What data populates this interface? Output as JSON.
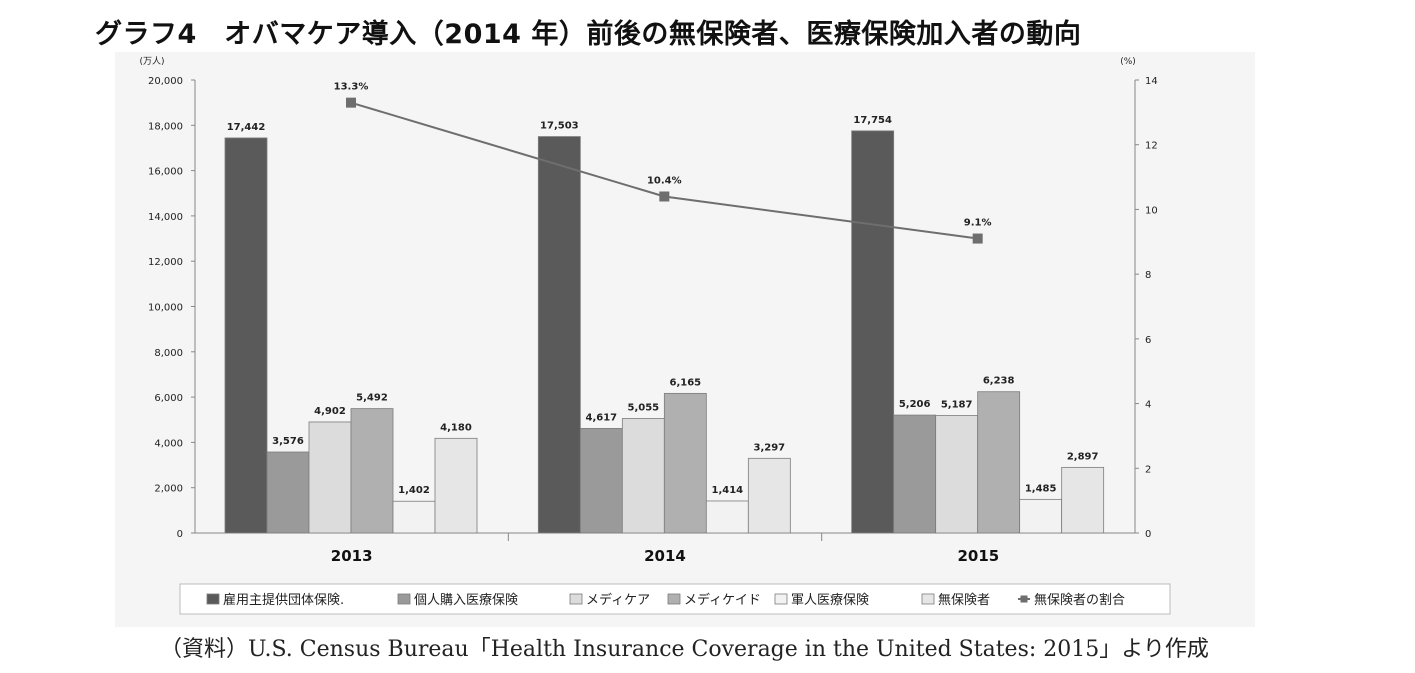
{
  "title": "グラフ4　オバマケア導入（2014 年）前後の無保険者、医療保険加入者の動向",
  "source": "（資料）U.S. Census Bureau「Health Insurance Coverage in the United States: 2015」より作成",
  "chart_data": {
    "type": "bar",
    "categories": [
      "2013",
      "2014",
      "2015"
    ],
    "series": [
      {
        "name": "雇用主提供団体保険",
        "type": "bar",
        "color": "#5a5a5a",
        "values": [
          17442,
          17503,
          17754
        ],
        "labels": [
          "17,442",
          "17,503",
          "17,754"
        ]
      },
      {
        "name": "個人購入医療保険",
        "type": "bar",
        "color": "#9a9a9a",
        "values": [
          3576,
          4617,
          5206
        ],
        "labels": [
          "3,576",
          "4,617",
          "5,206"
        ]
      },
      {
        "name": "メディケア",
        "type": "bar",
        "color": "#dcdcdc",
        "values": [
          4902,
          5055,
          5187
        ],
        "labels": [
          "4,902",
          "5,055",
          "5,187"
        ]
      },
      {
        "name": "メディケイド",
        "type": "bar",
        "color": "#b0b0b0",
        "values": [
          5492,
          6165,
          6238
        ],
        "labels": [
          "5,492",
          "6,165",
          "6,238"
        ]
      },
      {
        "name": "軍人医療保険",
        "type": "bar",
        "color": "#f2f2f2",
        "values": [
          1402,
          1414,
          1485
        ],
        "labels": [
          "1,402",
          "1,414",
          "1,485"
        ]
      },
      {
        "name": "無保険者",
        "type": "bar",
        "color": "#e6e6e6",
        "values": [
          4180,
          3297,
          2897
        ],
        "labels": [
          "4,180",
          "3,297",
          "2,897"
        ]
      },
      {
        "name": "無保険者の割合",
        "type": "line",
        "axis": "right",
        "color": "#6e6e6e",
        "values": [
          13.3,
          10.4,
          9.1
        ],
        "labels": [
          "13.3%",
          "10.4%",
          "9.1%"
        ]
      }
    ],
    "ylabel": "(万人)",
    "ylim": [
      0,
      20000
    ],
    "yticks": [
      "0",
      "2,000",
      "4,000",
      "6,000",
      "8,000",
      "10,000",
      "12,000",
      "14,000",
      "16,000",
      "18,000",
      "20,000"
    ],
    "y2label": "(%)",
    "y2lim": [
      0,
      14
    ],
    "y2ticks": [
      "0",
      "2",
      "4",
      "6",
      "8",
      "10",
      "12",
      "14"
    ],
    "legend_labels": [
      "雇用主提供団体保険.",
      "個人購入医療保険",
      "メディケア",
      "メディケイド",
      "軍人医療保険",
      "無保険者",
      "無保険者の割合"
    ],
    "grid": false,
    "legend": "bottom"
  }
}
